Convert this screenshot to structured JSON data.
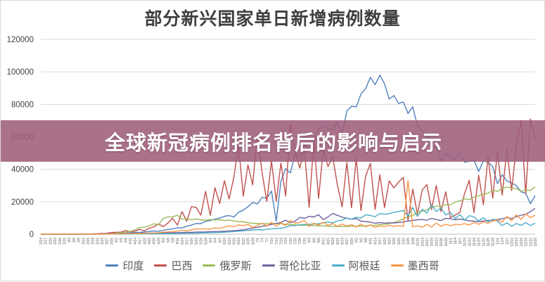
{
  "title": "部分新兴国家单日新增病例数量",
  "overlay_banner": {
    "text": "全球新冠病例排名背后的影响与启示",
    "bg_color": "#9e5f7a",
    "text_color": "#ffffff"
  },
  "chart_data": {
    "type": "line",
    "title": "部分新兴国家单日新增病例数量",
    "xlabel": "",
    "ylabel": "",
    "ylim": [
      0,
      120000
    ],
    "y_ticks": [
      0,
      20000,
      40000,
      60000,
      80000,
      100000,
      120000
    ],
    "y_tick_labels": [
      "0",
      "20000",
      "40000",
      "60000",
      "80000",
      "100000",
      "120000"
    ],
    "grid": "horizontal",
    "legend_position": "bottom",
    "axis_colors": {
      "gridline": "#d9d9d9",
      "axis_line": "#bfbfbf",
      "y_label": "#404040",
      "x_label": "#595959"
    },
    "x_tick_labels": [
      "2/14",
      "2/17",
      "2/20",
      "2/23",
      "2/26",
      "2/29",
      "3/3",
      "3/6",
      "3/9",
      "3/12",
      "3/15",
      "3/18",
      "3/21",
      "3/24",
      "3/27",
      "3/30",
      "4/2",
      "4/5",
      "4/8",
      "4/11",
      "4/14",
      "4/17",
      "4/20",
      "4/23",
      "4/26",
      "4/29",
      "5/2",
      "5/5",
      "5/8",
      "5/11",
      "5/14",
      "5/17",
      "5/20",
      "5/23",
      "5/26",
      "5/29",
      "6/1",
      "6/4",
      "6/7",
      "6/10",
      "6/13",
      "6/16",
      "6/19",
      "6/22",
      "6/25",
      "6/28",
      "7/1",
      "7/4",
      "7/7",
      "7/10",
      "7/13",
      "7/16",
      "7/19",
      "7/22",
      "7/25",
      "7/28",
      "7/31",
      "8/3",
      "8/6",
      "8/9",
      "8/12",
      "8/15",
      "8/18",
      "8/21",
      "8/24",
      "8/27",
      "8/30",
      "9/2",
      "9/5",
      "9/8",
      "9/11",
      "9/14",
      "9/17",
      "9/20",
      "9/23",
      "9/26",
      "9/29",
      "10/2",
      "10/5",
      "10/8",
      "10/11",
      "10/14",
      "10/17",
      "10/20",
      "10/23",
      "10/26",
      "10/29",
      "11/1",
      "11/4",
      "11/7",
      "11/10",
      "11/13",
      "11/16",
      "11/19",
      "11/22",
      "11/25",
      "11/28",
      "12/1",
      "12/4",
      "12/7",
      "12/10",
      "12/13",
      "12/16",
      "12/19",
      "12/22",
      "12/25"
    ],
    "series": [
      {
        "name": "印度",
        "color": "#4F81BD",
        "values": [
          0,
          0,
          0,
          0,
          0,
          0,
          0,
          0,
          5,
          10,
          20,
          30,
          60,
          100,
          130,
          200,
          400,
          500,
          550,
          850,
          1000,
          1100,
          1300,
          1650,
          1900,
          1800,
          2400,
          2900,
          3300,
          3900,
          3800,
          4900,
          5600,
          6600,
          6500,
          7900,
          8400,
          9300,
          9900,
          11000,
          11500,
          10600,
          13500,
          14800,
          16900,
          19600,
          18600,
          22700,
          22200,
          26500,
          8000,
          32700,
          40400,
          37700,
          48900,
          47700,
          55000,
          52000,
          56300,
          64400,
          67000,
          65000,
          64500,
          68900,
          61400,
          75800,
          78800,
          78400,
          86400,
          89700,
          96600,
          92100,
          97900,
          92600,
          83300,
          85400,
          80500,
          81500,
          74400,
          78500,
          66700,
          63500,
          61900,
          54000,
          53400,
          45100,
          49900,
          46900,
          46200,
          50400,
          44300,
          44900,
          45600,
          38600,
          45200,
          44400,
          41600,
          31100,
          36600,
          32900,
          31500,
          30000,
          26100,
          25200,
          18800,
          23800
        ]
      },
      {
        "name": "巴西",
        "color": "#C0504D",
        "values": [
          0,
          0,
          0,
          0,
          1,
          2,
          5,
          13,
          25,
          60,
          100,
          190,
          300,
          420,
          500,
          1100,
          1100,
          1300,
          2200,
          1500,
          1800,
          3000,
          2000,
          3700,
          4600,
          6300,
          4600,
          6900,
          9900,
          5600,
          13900,
          7900,
          17000,
          16500,
          11700,
          26400,
          11600,
          28600,
          18900,
          32900,
          21700,
          34900,
          54800,
          23400,
          42700,
          30400,
          61900,
          37900,
          20200,
          45000,
          20300,
          43800,
          23500,
          67900,
          51100,
          40800,
          52400,
          16600,
          57200,
          22000,
          52200,
          41600,
          47800,
          30300,
          16800,
          44200,
          16200,
          46900,
          14500,
          35800,
          43700,
          15200,
          36700,
          16400,
          32800,
          28500,
          32100,
          35000,
          8500,
          27800,
          12300,
          27200,
          30600,
          15100,
          30000,
          13900,
          26100,
          10100,
          11800,
          13400,
          25000,
          33200,
          13400,
          36300,
          18100,
          47900,
          22200,
          51100,
          24100,
          52200,
          26900,
          53500,
          70100,
          24800,
          70900,
          58900
        ]
      },
      {
        "name": "俄罗斯",
        "color": "#9BBB59",
        "values": [
          0,
          0,
          0,
          0,
          0,
          0,
          0,
          0,
          3,
          8,
          15,
          30,
          50,
          70,
          200,
          300,
          770,
          1000,
          1200,
          1700,
          2600,
          4100,
          4300,
          5200,
          6400,
          5800,
          9600,
          10600,
          10700,
          11700,
          9200,
          9700,
          8800,
          9400,
          8900,
          8600,
          9000,
          8800,
          8900,
          8400,
          8700,
          8200,
          7700,
          7600,
          7100,
          6700,
          6600,
          6600,
          6400,
          6600,
          6500,
          6400,
          6100,
          5800,
          5900,
          5400,
          5500,
          5400,
          5300,
          5200,
          5100,
          5000,
          4900,
          4800,
          4700,
          4700,
          4900,
          4900,
          5000,
          5100,
          5400,
          5500,
          5800,
          6100,
          6400,
          7200,
          8200,
          9400,
          10900,
          11500,
          13600,
          14200,
          15100,
          16300,
          17300,
          17300,
          18300,
          18100,
          19800,
          20500,
          21800,
          21300,
          22800,
          23600,
          24600,
          25200,
          27100,
          26400,
          28100,
          29000,
          28400,
          28100,
          26500,
          27300,
          26900,
          29100
        ]
      },
      {
        "name": "哥伦比亚",
        "color": "#71619e",
        "values": [
          0,
          0,
          0,
          0,
          0,
          0,
          0,
          1,
          3,
          9,
          20,
          45,
          90,
          150,
          200,
          300,
          350,
          400,
          420,
          450,
          500,
          520,
          550,
          600,
          650,
          700,
          750,
          800,
          850,
          900,
          1000,
          1100,
          1150,
          1250,
          1300,
          1400,
          1500,
          1600,
          1700,
          1800,
          2000,
          2200,
          2400,
          2700,
          3200,
          3800,
          4200,
          4900,
          5300,
          6000,
          6600,
          7200,
          8600,
          7000,
          8000,
          10300,
          9700,
          11000,
          10600,
          12000,
          9000,
          10600,
          12800,
          11600,
          10500,
          9800,
          9200,
          9600,
          8100,
          7800,
          7400,
          6700,
          7100,
          6800,
          7000,
          6900,
          7200,
          7500,
          8100,
          8500,
          8900,
          9000,
          8600,
          9700,
          9000,
          8400,
          9800,
          9500,
          8900,
          9300,
          8800,
          8200,
          8000,
          7700,
          8100,
          8400,
          8700,
          9000,
          9500,
          10200,
          9600,
          10800,
          11700,
          12300,
          13900,
          15900
        ]
      },
      {
        "name": "阿根廷",
        "color": "#4BACC6",
        "values": [
          0,
          0,
          0,
          0,
          0,
          0,
          0,
          1,
          2,
          5,
          10,
          15,
          30,
          50,
          70,
          100,
          110,
          120,
          130,
          140,
          160,
          180,
          200,
          230,
          260,
          290,
          300,
          330,
          360,
          400,
          440,
          480,
          550,
          650,
          750,
          850,
          900,
          1000,
          1100,
          1200,
          1400,
          1600,
          1800,
          2100,
          2300,
          2600,
          2800,
          2600,
          3000,
          3300,
          3500,
          3700,
          4200,
          5300,
          5300,
          5900,
          5900,
          6100,
          6300,
          6400,
          7000,
          7500,
          7000,
          8200,
          8700,
          10000,
          9200,
          10500,
          9900,
          12000,
          11500,
          10800,
          12700,
          12300,
          12600,
          13500,
          14000,
          14600,
          11200,
          16400,
          10900,
          15300,
          12900,
          18300,
          13900,
          16200,
          11800,
          13400,
          9500,
          12100,
          8700,
          11400,
          10600,
          8100,
          10200,
          7600,
          9200,
          8000,
          5300,
          7000,
          4900,
          6600,
          5400,
          7100,
          5300,
          6800
        ]
      },
      {
        "name": "墨西哥",
        "color": "#F79646",
        "values": [
          0,
          0,
          0,
          0,
          0,
          0,
          0,
          1,
          2,
          4,
          8,
          15,
          30,
          50,
          80,
          120,
          180,
          250,
          300,
          350,
          400,
          450,
          500,
          700,
          800,
          900,
          1200,
          1400,
          1500,
          1800,
          2400,
          2100,
          2700,
          3300,
          3200,
          3200,
          3100,
          3900,
          3600,
          4300,
          5200,
          4600,
          5700,
          5300,
          6100,
          4100,
          5400,
          6700,
          4900,
          7300,
          4800,
          6900,
          5300,
          8400,
          6800,
          7200,
          8500,
          4800,
          6700,
          5600,
          7400,
          5300,
          6600,
          4900,
          6200,
          5000,
          5900,
          4400,
          6200,
          4600,
          5700,
          4200,
          5100,
          4700,
          5500,
          4800,
          5300,
          4800,
          33000,
          4600,
          5200,
          4300,
          6000,
          4400,
          6800,
          4900,
          6100,
          5200,
          6100,
          5800,
          6500,
          5700,
          7200,
          6100,
          7600,
          6700,
          8100,
          8800,
          7500,
          10900,
          8300,
          11900,
          9100,
          12500,
          10200,
          11700
        ]
      }
    ]
  }
}
